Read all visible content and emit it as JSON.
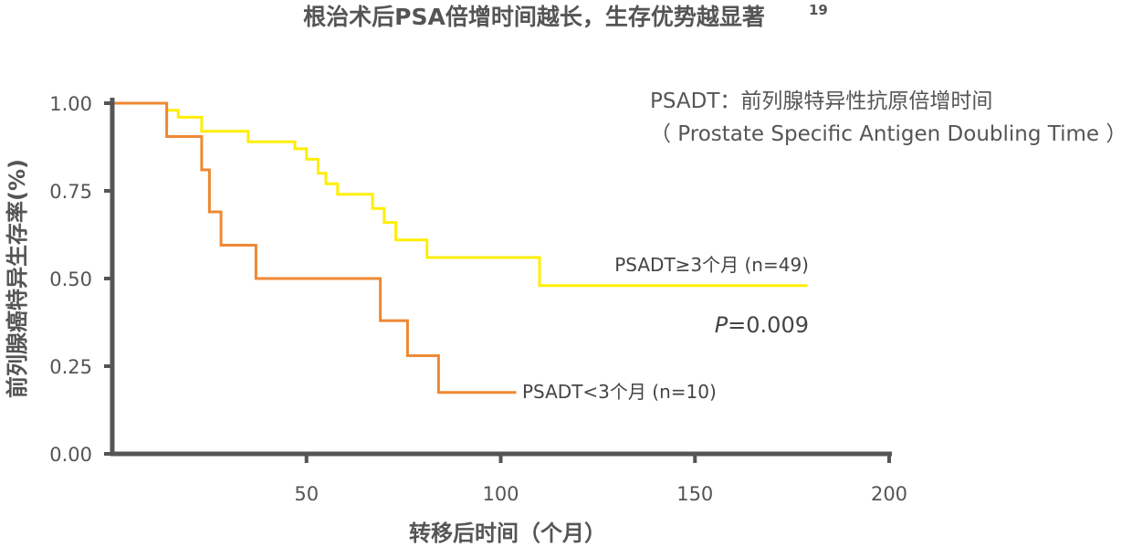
{
  "chart_data": {
    "type": "line",
    "subtype": "kaplan-meier step",
    "title": "根治术后PSA倍增时间越长，生存优势越显著",
    "title_superscript": "19",
    "xlabel": "转移后时间（个月）",
    "ylabel": "前列腺癌特异生存率(%)",
    "xlim": [
      0,
      200
    ],
    "ylim": [
      0,
      1
    ],
    "x_ticks": [
      "50",
      "100",
      "150",
      "200"
    ],
    "y_ticks": [
      "1.00",
      "0.75",
      "0.50",
      "0.25",
      "0.00"
    ],
    "grid": false,
    "annotation_line1": "PSADT：前列腺特异性抗原倍增时间",
    "annotation_line2": "（ Prostate Specific Antigen Doubling Time ）",
    "p_value_prefix": "P",
    "p_value_text": "=0.009",
    "series": [
      {
        "name": "PSADT≥3个月 (n=49)",
        "color": "#ffee00",
        "points": [
          [
            0,
            1.0
          ],
          [
            14,
            1.0
          ],
          [
            14,
            0.98
          ],
          [
            17,
            0.98
          ],
          [
            17,
            0.96
          ],
          [
            23,
            0.96
          ],
          [
            23,
            0.92
          ],
          [
            35,
            0.92
          ],
          [
            35,
            0.89
          ],
          [
            47,
            0.89
          ],
          [
            47,
            0.87
          ],
          [
            50,
            0.87
          ],
          [
            50,
            0.84
          ],
          [
            53,
            0.84
          ],
          [
            53,
            0.8
          ],
          [
            55,
            0.8
          ],
          [
            55,
            0.77
          ],
          [
            58,
            0.77
          ],
          [
            58,
            0.74
          ],
          [
            67,
            0.74
          ],
          [
            67,
            0.7
          ],
          [
            70,
            0.7
          ],
          [
            70,
            0.66
          ],
          [
            73,
            0.66
          ],
          [
            73,
            0.61
          ],
          [
            81,
            0.61
          ],
          [
            81,
            0.56
          ],
          [
            110,
            0.56
          ],
          [
            110,
            0.48
          ],
          [
            179,
            0.48
          ]
        ]
      },
      {
        "name": "PSADT<3个月 (n=10)",
        "color": "#ee8833",
        "points": [
          [
            0,
            1.0
          ],
          [
            14,
            1.0
          ],
          [
            14,
            0.905
          ],
          [
            23,
            0.905
          ],
          [
            23,
            0.81
          ],
          [
            25,
            0.81
          ],
          [
            25,
            0.69
          ],
          [
            28,
            0.69
          ],
          [
            28,
            0.595
          ],
          [
            37,
            0.595
          ],
          [
            37,
            0.5
          ],
          [
            69,
            0.5
          ],
          [
            69,
            0.38
          ],
          [
            76,
            0.38
          ],
          [
            76,
            0.28
          ],
          [
            84,
            0.28
          ],
          [
            84,
            0.175
          ],
          [
            104,
            0.175
          ]
        ]
      }
    ]
  }
}
